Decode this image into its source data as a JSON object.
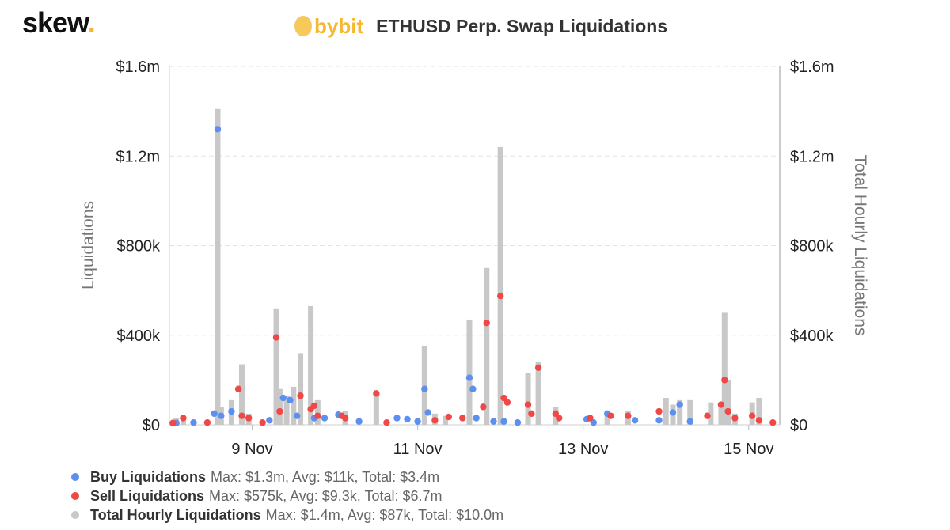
{
  "brand": {
    "name": "skew",
    "dot": "."
  },
  "exchange_logo": "bybit",
  "chart_data": {
    "type": "scatter",
    "title": "ETHUSD Perp. Swap Liquidations",
    "ylabel": "Liquidations",
    "y2label": "Total Hourly Liquidations",
    "ylim": [
      0,
      1600000
    ],
    "y2lim": [
      0,
      1600000
    ],
    "yticks": [
      "$0",
      "$400k",
      "$800k",
      "$1.2m",
      "$1.6m"
    ],
    "y2ticks": [
      "$0",
      "$400k",
      "$800k",
      "$1.2m",
      "$1.6m"
    ],
    "xlim": [
      "2020-11-08 00:00",
      "2020-11-15 09:00"
    ],
    "xticks": [
      {
        "date": "2020-11-09",
        "label": "9 Nov"
      },
      {
        "date": "2020-11-11",
        "label": "11 Nov"
      },
      {
        "date": "2020-11-13",
        "label": "13 Nov"
      },
      {
        "date": "2020-11-15",
        "label": "15 Nov"
      }
    ],
    "grid": "horizontal dashed",
    "legend_position": "bottom-left",
    "series": [
      {
        "name": "Buy Liquidations",
        "kind": "scatter",
        "color": "#5b8ff0",
        "stats": "Max: $1.3m, Avg: $11k, Total: $3.4m",
        "points": [
          [
            "2020-11-08 02:00",
            8000
          ],
          [
            "2020-11-08 07:00",
            10000
          ],
          [
            "2020-11-08 13:00",
            50000
          ],
          [
            "2020-11-08 14:00",
            1320000
          ],
          [
            "2020-11-08 15:00",
            40000
          ],
          [
            "2020-11-08 18:00",
            60000
          ],
          [
            "2020-11-09 05:00",
            20000
          ],
          [
            "2020-11-09 09:00",
            120000
          ],
          [
            "2020-11-09 11:00",
            110000
          ],
          [
            "2020-11-09 13:00",
            40000
          ],
          [
            "2020-11-09 18:00",
            30000
          ],
          [
            "2020-11-09 21:00",
            30000
          ],
          [
            "2020-11-10 01:00",
            45000
          ],
          [
            "2020-11-10 07:00",
            15000
          ],
          [
            "2020-11-10 18:00",
            30000
          ],
          [
            "2020-11-10 21:00",
            25000
          ],
          [
            "2020-11-11 00:00",
            15000
          ],
          [
            "2020-11-11 02:00",
            160000
          ],
          [
            "2020-11-11 03:00",
            55000
          ],
          [
            "2020-11-11 15:00",
            210000
          ],
          [
            "2020-11-11 16:00",
            160000
          ],
          [
            "2020-11-11 17:00",
            30000
          ],
          [
            "2020-11-11 22:00",
            15000
          ],
          [
            "2020-11-12 01:00",
            15000
          ],
          [
            "2020-11-12 05:00",
            10000
          ],
          [
            "2020-11-13 01:00",
            25000
          ],
          [
            "2020-11-13 03:00",
            10000
          ],
          [
            "2020-11-13 07:00",
            50000
          ],
          [
            "2020-11-13 15:00",
            20000
          ],
          [
            "2020-11-13 22:00",
            20000
          ],
          [
            "2020-11-14 02:00",
            55000
          ],
          [
            "2020-11-14 04:00",
            90000
          ],
          [
            "2020-11-14 07:00",
            15000
          ]
        ]
      },
      {
        "name": "Sell Liquidations",
        "kind": "scatter",
        "color": "#f04747",
        "stats": "Max: $575k, Avg: $9.3k, Total: $6.7m",
        "points": [
          [
            "2020-11-08 01:00",
            8000
          ],
          [
            "2020-11-08 04:00",
            30000
          ],
          [
            "2020-11-08 11:00",
            10000
          ],
          [
            "2020-11-08 20:00",
            160000
          ],
          [
            "2020-11-08 21:00",
            40000
          ],
          [
            "2020-11-08 23:00",
            30000
          ],
          [
            "2020-11-09 03:00",
            10000
          ],
          [
            "2020-11-09 07:00",
            390000
          ],
          [
            "2020-11-09 08:00",
            60000
          ],
          [
            "2020-11-09 14:00",
            130000
          ],
          [
            "2020-11-09 17:00",
            70000
          ],
          [
            "2020-11-09 18:00",
            85000
          ],
          [
            "2020-11-09 19:00",
            40000
          ],
          [
            "2020-11-10 02:00",
            40000
          ],
          [
            "2020-11-10 03:00",
            30000
          ],
          [
            "2020-11-10 12:00",
            140000
          ],
          [
            "2020-11-10 15:00",
            10000
          ],
          [
            "2020-11-11 05:00",
            20000
          ],
          [
            "2020-11-11 09:00",
            35000
          ],
          [
            "2020-11-11 13:00",
            30000
          ],
          [
            "2020-11-11 19:00",
            80000
          ],
          [
            "2020-11-11 20:00",
            455000
          ],
          [
            "2020-11-12 00:00",
            575000
          ],
          [
            "2020-11-12 01:00",
            120000
          ],
          [
            "2020-11-12 02:00",
            100000
          ],
          [
            "2020-11-12 08:00",
            90000
          ],
          [
            "2020-11-12 09:00",
            50000
          ],
          [
            "2020-11-12 11:00",
            255000
          ],
          [
            "2020-11-12 16:00",
            50000
          ],
          [
            "2020-11-12 17:00",
            30000
          ],
          [
            "2020-11-13 02:00",
            30000
          ],
          [
            "2020-11-13 08:00",
            40000
          ],
          [
            "2020-11-13 13:00",
            40000
          ],
          [
            "2020-11-13 22:00",
            60000
          ],
          [
            "2020-11-14 12:00",
            40000
          ],
          [
            "2020-11-14 16:00",
            90000
          ],
          [
            "2020-11-14 17:00",
            200000
          ],
          [
            "2020-11-14 18:00",
            60000
          ],
          [
            "2020-11-14 20:00",
            30000
          ],
          [
            "2020-11-15 01:00",
            40000
          ],
          [
            "2020-11-15 03:00",
            20000
          ],
          [
            "2020-11-15 07:00",
            10000
          ]
        ]
      },
      {
        "name": "Total Hourly Liquidations",
        "kind": "bar",
        "color": "#c8c8c8",
        "stats": "Max: $1.4m, Avg: $87k, Total: $10.0m",
        "points": [
          [
            "2020-11-08 02:00",
            30000
          ],
          [
            "2020-11-08 04:00",
            40000
          ],
          [
            "2020-11-08 14:00",
            1410000
          ],
          [
            "2020-11-08 15:00",
            80000
          ],
          [
            "2020-11-08 18:00",
            110000
          ],
          [
            "2020-11-08 21:00",
            270000
          ],
          [
            "2020-11-08 23:00",
            50000
          ],
          [
            "2020-11-09 07:00",
            520000
          ],
          [
            "2020-11-09 08:00",
            160000
          ],
          [
            "2020-11-09 10:00",
            130000
          ],
          [
            "2020-11-09 12:00",
            170000
          ],
          [
            "2020-11-09 14:00",
            320000
          ],
          [
            "2020-11-09 17:00",
            530000
          ],
          [
            "2020-11-09 19:00",
            110000
          ],
          [
            "2020-11-10 03:00",
            60000
          ],
          [
            "2020-11-10 12:00",
            150000
          ],
          [
            "2020-11-11 02:00",
            350000
          ],
          [
            "2020-11-11 05:00",
            50000
          ],
          [
            "2020-11-11 08:00",
            40000
          ],
          [
            "2020-11-11 15:00",
            470000
          ],
          [
            "2020-11-11 20:00",
            700000
          ],
          [
            "2020-11-12 00:00",
            1240000
          ],
          [
            "2020-11-12 08:00",
            230000
          ],
          [
            "2020-11-12 11:00",
            280000
          ],
          [
            "2020-11-12 16:00",
            80000
          ],
          [
            "2020-11-13 07:00",
            60000
          ],
          [
            "2020-11-13 13:00",
            60000
          ],
          [
            "2020-11-14 00:00",
            120000
          ],
          [
            "2020-11-14 02:00",
            90000
          ],
          [
            "2020-11-14 04:00",
            110000
          ],
          [
            "2020-11-14 07:00",
            110000
          ],
          [
            "2020-11-14 13:00",
            100000
          ],
          [
            "2020-11-14 16:00",
            80000
          ],
          [
            "2020-11-14 17:00",
            500000
          ],
          [
            "2020-11-14 18:00",
            200000
          ],
          [
            "2020-11-14 20:00",
            50000
          ],
          [
            "2020-11-15 01:00",
            100000
          ],
          [
            "2020-11-15 03:00",
            120000
          ]
        ]
      }
    ]
  },
  "legend": [
    {
      "name": "Buy Liquidations",
      "stats": "Max: $1.3m, Avg: $11k, Total: $3.4m",
      "color": "#5b8ff0"
    },
    {
      "name": "Sell Liquidations",
      "stats": "Max: $575k, Avg: $9.3k, Total: $6.7m",
      "color": "#f04747"
    },
    {
      "name": "Total Hourly Liquidations",
      "stats": "Max: $1.4m, Avg: $87k, Total: $10.0m",
      "color": "#c8c8c8"
    }
  ]
}
